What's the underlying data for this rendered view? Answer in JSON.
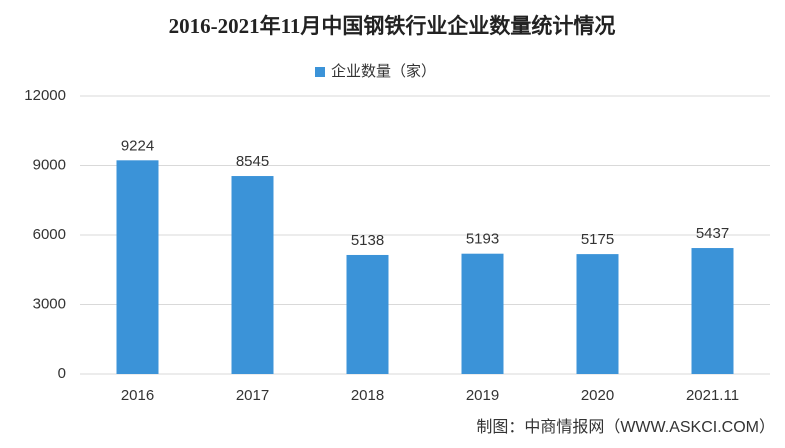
{
  "chart_data": {
    "type": "bar",
    "title": "2016-2021年11月中国钢铁行业企业数量统计情况",
    "legend": "企业数量（家）",
    "categories": [
      "2016",
      "2017",
      "2018",
      "2019",
      "2020",
      "2021.11"
    ],
    "values": [
      9224,
      8545,
      5138,
      5193,
      5175,
      5437
    ],
    "color": "#3b93d8",
    "ylim": [
      0,
      12000
    ],
    "yticks": [
      0,
      3000,
      6000,
      9000,
      12000
    ],
    "grid": true,
    "footer": "制图：中商情报网（WWW.ASKCI.COM）"
  }
}
